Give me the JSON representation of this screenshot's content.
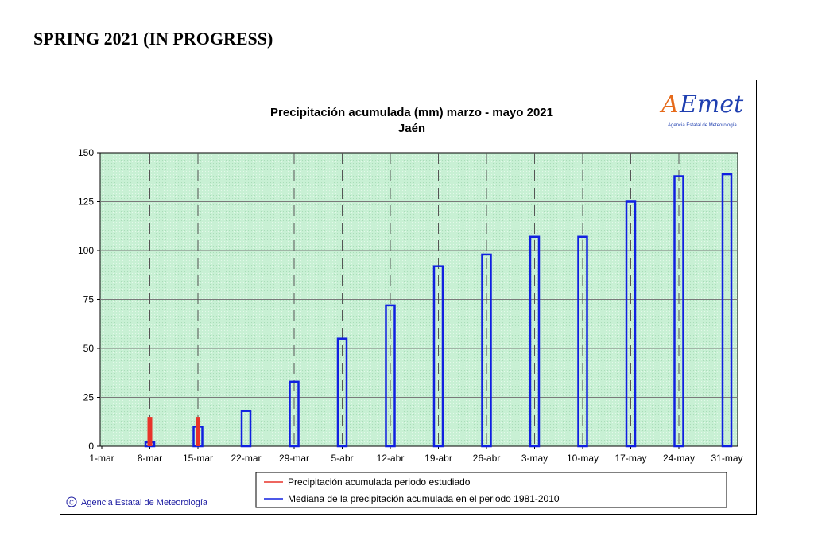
{
  "page": {
    "heading": "SPRING 2021 (IN PROGRESS)"
  },
  "chart_data": {
    "type": "bar",
    "title": "Precipitación acumulada (mm) marzo - mayo 2021",
    "subtitle": "Jaén",
    "categories": [
      "1-mar",
      "8-mar",
      "15-mar",
      "22-mar",
      "29-mar",
      "5-abr",
      "12-abr",
      "19-abr",
      "26-abr",
      "3-may",
      "10-may",
      "17-may",
      "24-may",
      "31-may"
    ],
    "ylim": [
      0,
      150
    ],
    "yticks": [
      0,
      25,
      50,
      75,
      100,
      125,
      150
    ],
    "grid": true,
    "series": [
      {
        "name": "Precipitación acumulada periodo estudiado",
        "color": "#e8332a",
        "style": "filled",
        "values": [
          0,
          15,
          15,
          null,
          null,
          null,
          null,
          null,
          null,
          null,
          null,
          null,
          null,
          null
        ]
      },
      {
        "name": "Mediana de la precipitación acumulada en el periodo 1981-2010",
        "color": "#1020e0",
        "style": "outline",
        "values": [
          0,
          2,
          10,
          18,
          33,
          55,
          72,
          92,
          98,
          107,
          107,
          125,
          138,
          139
        ]
      }
    ],
    "legend": {
      "placement": "bottom-center"
    },
    "footer": "Agencia Estatal de Meteorología",
    "plot_background": "#c8f0d4"
  },
  "logo": {
    "main_a": "A",
    "main_rest": "Emet",
    "sub": "Agencia Estatal de Meteorología"
  }
}
